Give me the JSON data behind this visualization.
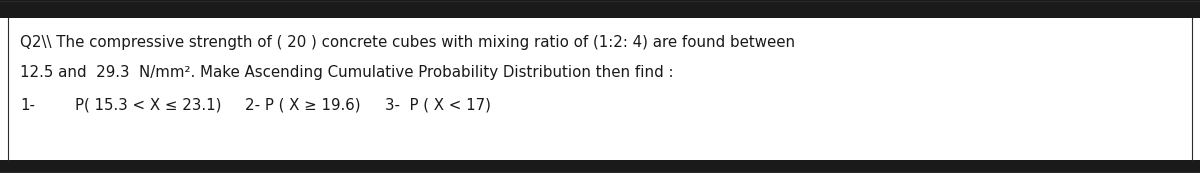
{
  "line1": "Q2\\\\ The compressive strength of ( 20 ) concrete cubes with mixing ratio of (1:2: 4) are found between",
  "line2": "12.5 and  29.3  N/mm². Make Ascending Cumulative Probability Distribution then find :",
  "line3a": "1-",
  "line3b": "P( 15.3 < X ≤ 23.1)",
  "line3c": "2- P ( X ≥ 19.6)",
  "line3d": "3-  P ( X < 17)",
  "bg_color": "#ffffff",
  "border_color": "#2a2a2a",
  "text_color": "#1a1a1a",
  "font_size": 10.8,
  "top_stripe_color": "#1a1a1a",
  "bottom_stripe_color": "#1a1a1a"
}
